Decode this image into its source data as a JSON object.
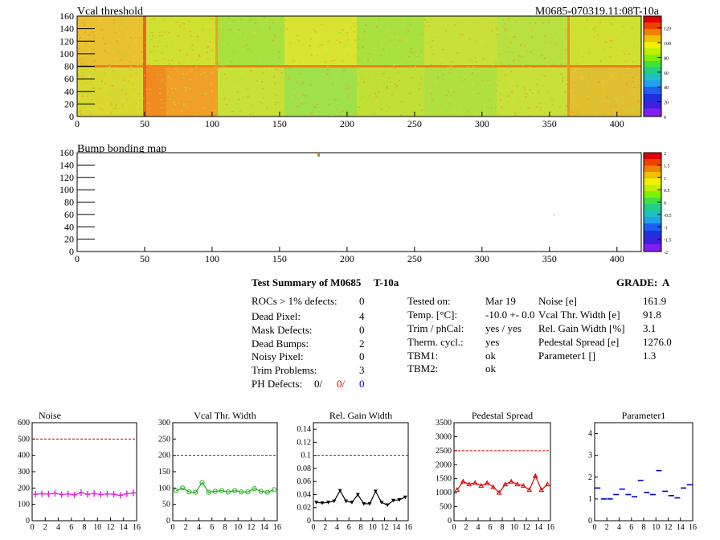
{
  "heatmaps": [
    {
      "title": "Vcal threshold",
      "id_label": "M0685-070319.11:08T-10a",
      "x_ticks": [
        "0",
        "50",
        "100",
        "150",
        "200",
        "250",
        "300",
        "350",
        "400"
      ],
      "y_ticks": [
        "0",
        "20",
        "40",
        "60",
        "80",
        "100",
        "120",
        "140",
        "160"
      ],
      "z_ticks": [
        "0",
        "20",
        "40",
        "60",
        "80",
        "100",
        "120"
      ]
    },
    {
      "title": "Bump bonding map",
      "x_ticks": [
        "0",
        "50",
        "100",
        "150",
        "200",
        "250",
        "300",
        "350",
        "400"
      ],
      "y_ticks": [
        "0",
        "20",
        "40",
        "60",
        "80",
        "100",
        "120",
        "140",
        "160"
      ],
      "z_ticks": [
        "-2",
        "-1.5",
        "-1",
        "-0.5",
        "0",
        "0.5",
        "1",
        "1.5",
        "2"
      ]
    }
  ],
  "summary": {
    "title": "Test Summary of M0685",
    "test": "T-10a",
    "grade_label": "GRADE:",
    "grade": "A",
    "defects": [
      {
        "label": "ROCs > 1% defects:",
        "value": "0"
      },
      {
        "label": "Dead Pixel:",
        "value": "4"
      },
      {
        "label": "Mask Defects:",
        "value": "0"
      },
      {
        "label": "Dead Bumps:",
        "value": "2"
      },
      {
        "label": "Noisy Pixel:",
        "value": "0"
      },
      {
        "label": "Trim Problems:",
        "value": "3"
      }
    ],
    "ph_label": "PH Defects:",
    "ph_values": [
      "0/",
      "0/",
      "0"
    ],
    "conditions": [
      {
        "label": "Tested on:",
        "value": "Mar 19"
      },
      {
        "label": "Temp. [°C]:",
        "value": "-10.0 +- 0.0"
      },
      {
        "label": "Trim / phCal:",
        "value": "yes / yes"
      },
      {
        "label": "Therm. cycl.:",
        "value": "yes"
      },
      {
        "label": "TBM1:",
        "value": "ok"
      },
      {
        "label": "TBM2:",
        "value": "ok"
      }
    ],
    "results": [
      {
        "label": "Noise [e]",
        "value": "161.9"
      },
      {
        "label": "Vcal Thr. Width [e]",
        "value": "91.8"
      },
      {
        "label": "Rel. Gain Width [%]",
        "value": "3.1"
      },
      {
        "label": "Pedestal Spread [e]",
        "value": "1276.0"
      },
      {
        "label": "Parameter1 []",
        "value": "1.3"
      }
    ]
  },
  "chart_data": [
    {
      "type": "line",
      "title": "Noise",
      "color": "#e020e0",
      "marker": "cross",
      "x": [
        0,
        1,
        2,
        3,
        4,
        5,
        6,
        7,
        8,
        9,
        10,
        11,
        12,
        13,
        14,
        15
      ],
      "values": [
        162,
        165,
        163,
        168,
        160,
        164,
        158,
        172,
        162,
        166,
        160,
        164,
        162,
        155,
        165,
        170
      ],
      "ylim": [
        0,
        600
      ],
      "y_ticks": [
        "0",
        "100",
        "200",
        "300",
        "400",
        "500",
        "600"
      ],
      "threshold": 500,
      "x_ticks": [
        "0",
        "2",
        "4",
        "6",
        "8",
        "10",
        "12",
        "14",
        "16"
      ]
    },
    {
      "type": "line",
      "title": "Vcal Thr. Width",
      "color": "#20b020",
      "marker": "circle",
      "x": [
        0,
        1,
        2,
        3,
        4,
        5,
        6,
        7,
        8,
        9,
        10,
        11,
        12,
        13,
        14,
        15
      ],
      "values": [
        92,
        100,
        88,
        87,
        117,
        87,
        90,
        92,
        88,
        92,
        88,
        88,
        98,
        90,
        87,
        95
      ],
      "ylim": [
        0,
        300
      ],
      "y_ticks": [
        "0",
        "50",
        "100",
        "150",
        "200",
        "250",
        "300"
      ],
      "threshold": 200,
      "x_ticks": [
        "0",
        "2",
        "4",
        "6",
        "8",
        "10",
        "12",
        "14",
        "16"
      ]
    },
    {
      "type": "line",
      "title": "Rel. Gain Width",
      "color": "#000000",
      "marker": "triangle",
      "x": [
        0,
        1,
        2,
        3,
        4,
        5,
        6,
        7,
        8,
        9,
        10,
        11,
        12,
        13,
        14,
        15
      ],
      "values": [
        0.028,
        0.027,
        0.028,
        0.03,
        0.046,
        0.03,
        0.028,
        0.04,
        0.026,
        0.026,
        0.045,
        0.028,
        0.024,
        0.031,
        0.032,
        0.036
      ],
      "ylim": [
        0,
        0.15
      ],
      "y_ticks": [
        "0",
        "0.02",
        "0.04",
        "0.06",
        "0.08",
        "0.1",
        "0.12",
        "0.14"
      ],
      "threshold": 0.1,
      "x_ticks": [
        "0",
        "2",
        "4",
        "6",
        "8",
        "10",
        "12",
        "14",
        "16"
      ]
    },
    {
      "type": "line",
      "title": "Pedestal Spread",
      "color": "#e00000",
      "marker": "triangle-open",
      "x": [
        0,
        1,
        2,
        3,
        4,
        5,
        6,
        7,
        8,
        9,
        10,
        11,
        12,
        13,
        14,
        15
      ],
      "values": [
        1100,
        1400,
        1300,
        1350,
        1250,
        1350,
        1200,
        1000,
        1300,
        1400,
        1300,
        1250,
        1100,
        1600,
        1100,
        1300
      ],
      "ylim": [
        0,
        3500
      ],
      "y_ticks": [
        "0",
        "500",
        "1000",
        "1500",
        "2000",
        "2500",
        "3000",
        "3500"
      ],
      "threshold": 2500,
      "x_ticks": [
        "0",
        "2",
        "4",
        "6",
        "8",
        "10",
        "12",
        "14",
        "16"
      ]
    },
    {
      "type": "scatter",
      "title": "Parameter1",
      "color": "#0000e0",
      "marker": "hbar",
      "x": [
        0,
        1,
        2,
        3,
        4,
        5,
        6,
        7,
        8,
        9,
        10,
        11,
        12,
        13,
        14,
        15
      ],
      "values": [
        1.5,
        1.0,
        1.0,
        1.2,
        1.45,
        1.2,
        1.1,
        1.85,
        1.3,
        1.2,
        2.3,
        1.35,
        1.15,
        1.05,
        1.5,
        1.65
      ],
      "ylim": [
        0,
        4.5
      ],
      "y_ticks": [
        "0",
        "1",
        "2",
        "3",
        "4"
      ],
      "x_ticks": [
        "0",
        "2",
        "4",
        "6",
        "8",
        "10",
        "12",
        "14",
        "16"
      ]
    }
  ]
}
